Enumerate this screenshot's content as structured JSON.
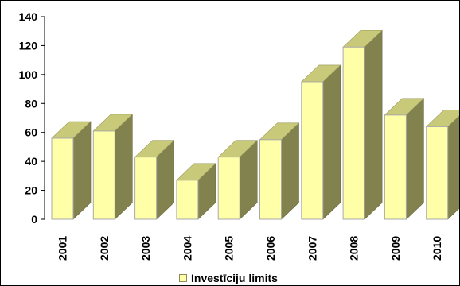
{
  "colors": {
    "front": "#ffffa8",
    "top": "#c9c97a",
    "side": "#82824e",
    "axis": "#000000",
    "title": "#1f4e9a"
  },
  "chart_data": {
    "type": "bar",
    "title": "",
    "xlabel": "",
    "ylabel": "",
    "ylim": [
      0,
      140
    ],
    "yticks": [
      0,
      20,
      40,
      60,
      80,
      100,
      120,
      140
    ],
    "categories": [
      "2001",
      "2002",
      "2003",
      "2004",
      "2005",
      "2006",
      "2007",
      "2008",
      "2009",
      "2010"
    ],
    "series": [
      {
        "name": "Investīciju limits",
        "values": [
          56,
          61,
          43,
          27,
          43,
          55,
          95,
          119,
          72,
          64
        ]
      }
    ],
    "grid": false,
    "legend_position": "bottom-center",
    "style": "3d-columns"
  }
}
